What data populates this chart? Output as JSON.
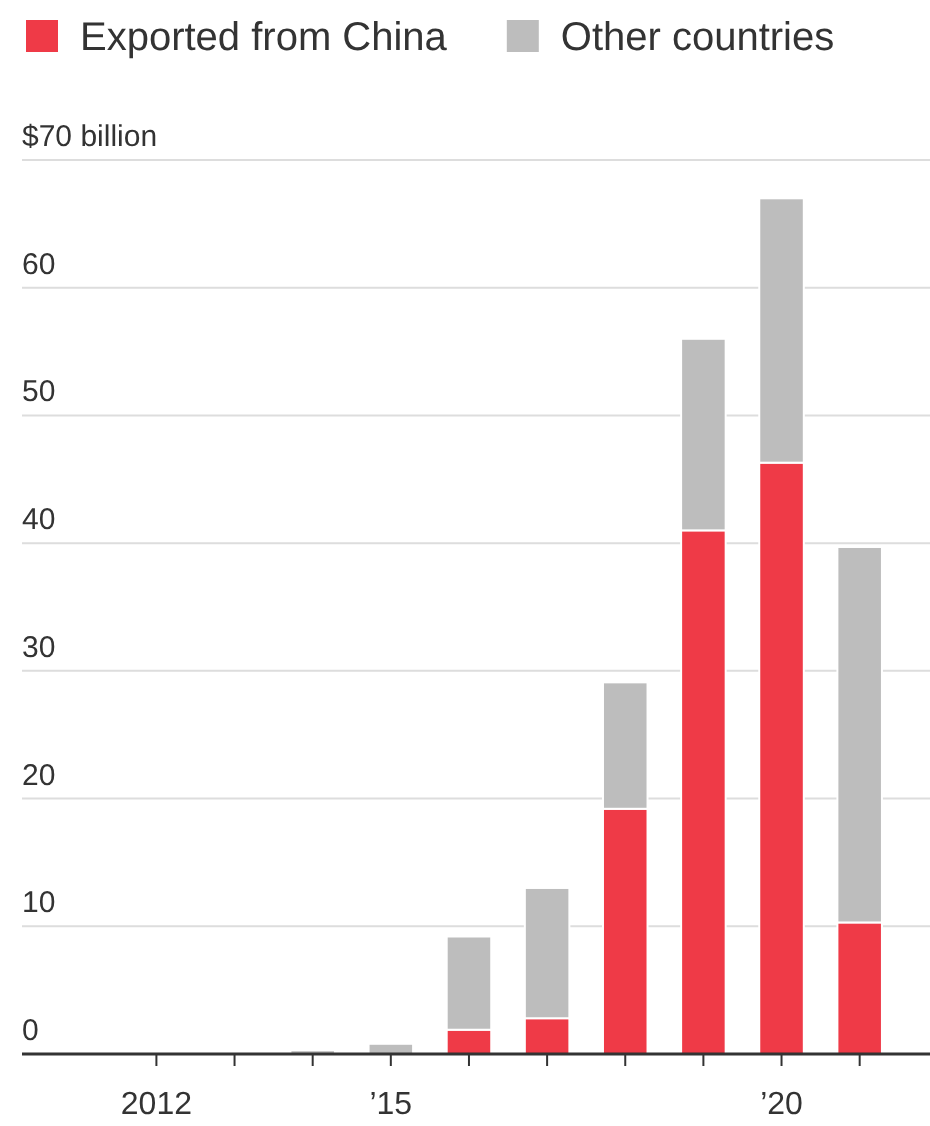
{
  "chart_data": {
    "type": "bar",
    "stacked": true,
    "categories": [
      "2012",
      null,
      null,
      "’15",
      null,
      null,
      null,
      null,
      "’20",
      null
    ],
    "series": [
      {
        "name": "Exported from China",
        "color": "#ef3a47",
        "values": [
          0,
          0,
          0,
          0,
          1.9,
          2.8,
          19.2,
          41.0,
          46.3,
          10.3
        ]
      },
      {
        "name": "Other countries",
        "color": "#bdbdbd",
        "values": [
          0,
          0,
          0.3,
          0.8,
          7.3,
          10.2,
          9.9,
          15.0,
          20.7,
          29.4
        ]
      }
    ],
    "ylim": [
      0,
      70
    ],
    "yticks": [
      0,
      10,
      20,
      30,
      40,
      50,
      60,
      {
        "value": 70,
        "label": "$70 billion"
      }
    ],
    "grid": "y",
    "legend": "top left"
  }
}
